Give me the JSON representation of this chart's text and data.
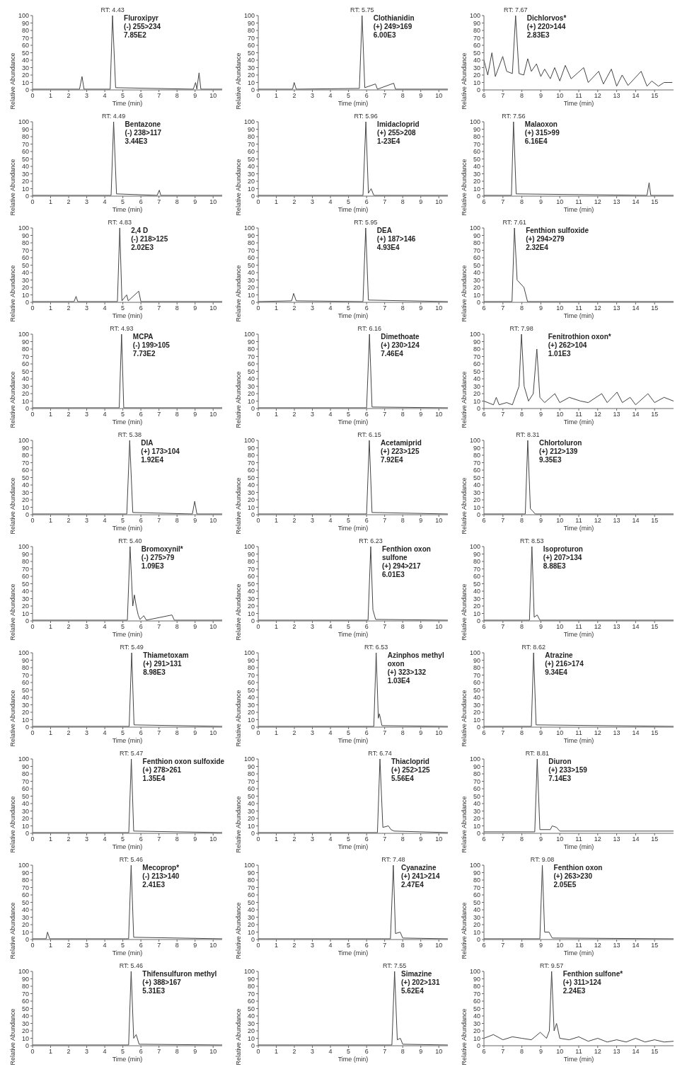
{
  "chart_data": [
    {
      "type": "line",
      "title": "Fluroxipyr",
      "subtitle": "(-) 255>234",
      "annotations": [
        "7.85E2",
        {
          "text": "RT: 4.43",
          "x": 4.43,
          "y": 100
        }
      ],
      "x": [
        0,
        2.6,
        2.74,
        2.85,
        4.3,
        4.43,
        4.6,
        8.9,
        9.03,
        9.1,
        9.22,
        9.32,
        10.5
      ],
      "values": [
        1,
        1,
        18,
        1,
        1,
        100,
        3,
        1,
        10,
        1,
        23,
        1,
        1
      ],
      "color": "#444444",
      "xlim": [
        0,
        10.5
      ],
      "xticks": [
        0,
        1,
        2,
        3,
        4,
        5,
        6,
        7,
        8,
        9,
        10
      ],
      "ylim": [
        0,
        100
      ],
      "yticks": [
        0,
        10,
        20,
        30,
        40,
        50,
        60,
        70,
        80,
        90,
        100
      ],
      "xlabel": "Time (min)",
      "ylabel": "Relative Abundance"
    },
    {
      "type": "line",
      "title": "Clothianidin",
      "subtitle": "(+) 249>169",
      "annotations": [
        "6.00E3",
        {
          "text": "RT: 5.75",
          "x": 5.75,
          "y": 100
        }
      ],
      "x": [
        0,
        1.9,
        1.99,
        2.1,
        5.6,
        5.75,
        5.9,
        6.49,
        6.6,
        7.5,
        7.6,
        10.5
      ],
      "values": [
        1,
        1,
        10,
        1,
        2,
        100,
        3,
        8,
        1,
        9,
        1,
        1
      ],
      "color": "#444444",
      "xlim": [
        0,
        10.5
      ],
      "xticks": [
        0,
        1,
        2,
        3,
        4,
        5,
        6,
        7,
        8,
        9,
        10
      ],
      "ylim": [
        0,
        100
      ],
      "yticks": [
        0,
        10,
        20,
        30,
        40,
        50,
        60,
        70,
        80,
        90,
        100
      ],
      "xlabel": "Time (min)",
      "ylabel": "Relative Abundance"
    },
    {
      "type": "line",
      "title": "Dichlorvos*",
      "subtitle": "(+) 220>144",
      "annotations": [
        "2.83E3",
        {
          "text": "RT: 7.67",
          "x": 7.67,
          "y": 100
        }
      ],
      "x": [
        6,
        6.2,
        6.42,
        6.6,
        6.99,
        7.2,
        7.5,
        7.67,
        7.85,
        8.1,
        8.31,
        8.5,
        8.77,
        9.0,
        9.2,
        9.5,
        9.73,
        10.0,
        10.29,
        10.6,
        11.26,
        11.5,
        12.05,
        12.3,
        12.72,
        13.0,
        13.29,
        13.6,
        14.29,
        14.6,
        14.85,
        15.2,
        15.5,
        15.92
      ],
      "values": [
        40,
        20,
        50,
        18,
        45,
        25,
        22,
        100,
        22,
        20,
        42,
        25,
        35,
        18,
        28,
        15,
        30,
        12,
        33,
        15,
        30,
        10,
        25,
        8,
        28,
        5,
        20,
        6,
        25,
        5,
        12,
        5,
        10,
        10
      ],
      "color": "#444444",
      "xlim": [
        6,
        16
      ],
      "xticks": [
        6,
        7,
        8,
        9,
        10,
        11,
        12,
        13,
        14,
        15
      ],
      "ylim": [
        0,
        100
      ],
      "yticks": [
        0,
        10,
        20,
        30,
        40,
        50,
        60,
        70,
        80,
        90,
        100
      ],
      "xlabel": "Time (min)",
      "ylabel": "Relative Abundance"
    },
    {
      "type": "line",
      "title": "Bentazone",
      "subtitle": "(-) 238>117",
      "annotations": [
        "3.44E3",
        {
          "text": "RT: 4.49",
          "x": 4.49,
          "y": 100
        }
      ],
      "x": [
        0,
        4.35,
        4.49,
        4.65,
        6.9,
        7.02,
        7.1,
        10.5
      ],
      "values": [
        1,
        1,
        100,
        3,
        1,
        8,
        1,
        1
      ],
      "color": "#444444",
      "xlim": [
        0,
        10.5
      ],
      "xticks": [
        0,
        1,
        2,
        3,
        4,
        5,
        6,
        7,
        8,
        9,
        10
      ],
      "ylim": [
        0,
        100
      ],
      "yticks": [
        0,
        10,
        20,
        30,
        40,
        50,
        60,
        70,
        80,
        90,
        100
      ],
      "xlabel": "Time (min)",
      "ylabel": "Relative Abundance"
    },
    {
      "type": "line",
      "title": "Imidacloprid",
      "subtitle": "(+) 255>208",
      "annotations": [
        "1-23E4",
        {
          "text": "RT: 5.96",
          "x": 5.96,
          "y": 100
        }
      ],
      "x": [
        0,
        5.8,
        5.96,
        6.1,
        6.25,
        6.4,
        10.5
      ],
      "values": [
        1,
        1,
        100,
        4,
        10,
        1,
        1
      ],
      "color": "#444444",
      "xlim": [
        0,
        10.5
      ],
      "xticks": [
        0,
        1,
        2,
        3,
        4,
        5,
        6,
        7,
        8,
        9,
        10
      ],
      "ylim": [
        0,
        100
      ],
      "yticks": [
        0,
        10,
        20,
        30,
        40,
        50,
        60,
        70,
        80,
        90,
        100
      ],
      "xlabel": "Time (min)",
      "ylabel": "Relative Abundance"
    },
    {
      "type": "line",
      "title": "Malaoxon",
      "subtitle": "(+) 315>99",
      "annotations": [
        "6.16E4",
        {
          "text": "RT: 7.56",
          "x": 7.56,
          "y": 100
        }
      ],
      "x": [
        6,
        7.45,
        7.56,
        7.7,
        14.6,
        14.71,
        14.8,
        16
      ],
      "values": [
        1,
        1,
        100,
        3,
        1,
        18,
        1,
        1
      ],
      "color": "#444444",
      "xlim": [
        6,
        16
      ],
      "xticks": [
        6,
        7,
        8,
        9,
        10,
        11,
        12,
        13,
        14,
        15
      ],
      "ylim": [
        0,
        100
      ],
      "yticks": [
        0,
        10,
        20,
        30,
        40,
        50,
        60,
        70,
        80,
        90,
        100
      ],
      "xlabel": "Time (min)",
      "ylabel": "Relative Abundance"
    },
    {
      "type": "line",
      "title": "2,4 D",
      "subtitle": "(-) 218>125",
      "annotations": [
        "2.02E3",
        {
          "text": "RT: 4.83",
          "x": 4.83,
          "y": 100
        }
      ],
      "x": [
        0,
        2.3,
        2.41,
        2.5,
        4.7,
        4.83,
        4.95,
        5.21,
        5.3,
        5.88,
        6.0,
        10.5
      ],
      "values": [
        1,
        1,
        8,
        1,
        1,
        100,
        2,
        10,
        2,
        15,
        1,
        1
      ],
      "color": "#444444",
      "xlim": [
        0,
        10.5
      ],
      "xticks": [
        0,
        1,
        2,
        3,
        4,
        5,
        6,
        7,
        8,
        9,
        10
      ],
      "ylim": [
        0,
        100
      ],
      "yticks": [
        0,
        10,
        20,
        30,
        40,
        50,
        60,
        70,
        80,
        90,
        100
      ],
      "xlabel": "Time (min)",
      "ylabel": "Relative Abundance"
    },
    {
      "type": "line",
      "title": "DEA",
      "subtitle": "(+) 187>146",
      "annotations": [
        "4.93E4",
        {
          "text": "RT: 5.95",
          "x": 5.95,
          "y": 100
        }
      ],
      "x": [
        0,
        1.85,
        1.96,
        2.1,
        5.8,
        5.95,
        6.1,
        10.5
      ],
      "values": [
        1,
        2,
        12,
        2,
        1,
        100,
        3,
        1
      ],
      "color": "#444444",
      "xlim": [
        0,
        10.5
      ],
      "xticks": [
        0,
        1,
        2,
        3,
        4,
        5,
        6,
        7,
        8,
        9,
        10
      ],
      "ylim": [
        0,
        100
      ],
      "yticks": [
        0,
        10,
        20,
        30,
        40,
        50,
        60,
        70,
        80,
        90,
        100
      ],
      "xlabel": "Time (min)",
      "ylabel": "Relative Abundance"
    },
    {
      "type": "line",
      "title": "Fenthion sulfoxide",
      "subtitle": "(+) 294>279",
      "annotations": [
        "2.32E4",
        {
          "text": "RT: 7.61",
          "x": 7.61,
          "y": 100
        }
      ],
      "x": [
        6,
        7.48,
        7.61,
        7.75,
        8.11,
        8.3,
        16
      ],
      "values": [
        1,
        1,
        100,
        30,
        20,
        1,
        1
      ],
      "color": "#444444",
      "xlim": [
        6,
        16
      ],
      "xticks": [
        6,
        7,
        8,
        9,
        10,
        11,
        12,
        13,
        14,
        15
      ],
      "ylim": [
        0,
        100
      ],
      "yticks": [
        0,
        10,
        20,
        30,
        40,
        50,
        60,
        70,
        80,
        90,
        100
      ],
      "xlabel": "Time (min)",
      "ylabel": "Relative Abundance"
    },
    {
      "type": "line",
      "title": "MCPA",
      "subtitle": "(-) 199>105",
      "annotations": [
        "7.73E2",
        {
          "text": "RT: 4.93",
          "x": 4.93,
          "y": 100
        }
      ],
      "x": [
        0,
        4.8,
        4.93,
        5.05,
        10.5
      ],
      "values": [
        1,
        1,
        100,
        1,
        1
      ],
      "color": "#444444",
      "xlim": [
        0,
        10.5
      ],
      "xticks": [
        0,
        1,
        2,
        3,
        4,
        5,
        6,
        7,
        8,
        9,
        10
      ],
      "ylim": [
        0,
        100
      ],
      "yticks": [
        0,
        10,
        20,
        30,
        40,
        50,
        60,
        70,
        80,
        90,
        100
      ],
      "xlabel": "Time (min)",
      "ylabel": "Relative Abundance"
    },
    {
      "type": "line",
      "title": "Dimethoate",
      "subtitle": "(+) 230>124",
      "annotations": [
        "7.46E4",
        {
          "text": "RT: 6.16",
          "x": 6.16,
          "y": 100
        }
      ],
      "x": [
        0,
        6.0,
        6.16,
        6.3,
        10.5
      ],
      "values": [
        1,
        1,
        100,
        2,
        1
      ],
      "color": "#444444",
      "xlim": [
        0,
        10.5
      ],
      "xticks": [
        0,
        1,
        2,
        3,
        4,
        5,
        6,
        7,
        8,
        9,
        10
      ],
      "ylim": [
        0,
        100
      ],
      "yticks": [
        0,
        10,
        20,
        30,
        40,
        50,
        60,
        70,
        80,
        90,
        100
      ],
      "xlabel": "Time (min)",
      "ylabel": "Relative Abundance"
    },
    {
      "type": "line",
      "title": "Fenitrothion oxon*",
      "subtitle": "(+) 262>104",
      "annotations": [
        "1.01E3",
        {
          "text": "RT: 7.98",
          "x": 7.98,
          "y": 100
        }
      ],
      "x": [
        6,
        6.5,
        6.65,
        6.8,
        7.2,
        7.5,
        7.85,
        7.98,
        8.12,
        8.35,
        8.6,
        8.79,
        8.95,
        9.2,
        9.74,
        10.0,
        10.5,
        11.1,
        11.5,
        12.21,
        12.5,
        13.02,
        13.3,
        13.71,
        14.0,
        14.65,
        15.0,
        15.5,
        16
      ],
      "values": [
        10,
        5,
        15,
        5,
        8,
        5,
        30,
        100,
        30,
        10,
        20,
        80,
        15,
        8,
        20,
        8,
        15,
        10,
        8,
        20,
        8,
        22,
        8,
        15,
        5,
        20,
        8,
        15,
        10
      ],
      "color": "#444444",
      "xlim": [
        6,
        16
      ],
      "xticks": [
        6,
        7,
        8,
        9,
        10,
        11,
        12,
        13,
        14,
        15
      ],
      "ylim": [
        0,
        100
      ],
      "yticks": [
        0,
        10,
        20,
        30,
        40,
        50,
        60,
        70,
        80,
        90,
        100
      ],
      "xlabel": "Time (min)",
      "ylabel": "Relative Abundance"
    },
    {
      "type": "line",
      "title": "DIA",
      "subtitle": "(+) 173>104",
      "annotations": [
        "1.92E4",
        {
          "text": "RT: 5.38",
          "x": 5.38,
          "y": 100
        }
      ],
      "x": [
        0,
        5.22,
        5.38,
        5.55,
        8.85,
        8.98,
        9.1,
        10.5
      ],
      "values": [
        1,
        1,
        100,
        3,
        1,
        18,
        1,
        1
      ],
      "color": "#444444",
      "xlim": [
        0,
        10.5
      ],
      "xticks": [
        0,
        1,
        2,
        3,
        4,
        5,
        6,
        7,
        8,
        9,
        10
      ],
      "ylim": [
        0,
        100
      ],
      "yticks": [
        0,
        10,
        20,
        30,
        40,
        50,
        60,
        70,
        80,
        90,
        100
      ],
      "xlabel": "Time (min)",
      "ylabel": "Relative Abundance"
    },
    {
      "type": "line",
      "title": "Acetamiprid",
      "subtitle": "(+) 223>125",
      "annotations": [
        "7.92E4",
        {
          "text": "RT: 6.15",
          "x": 6.15,
          "y": 100
        }
      ],
      "x": [
        0,
        6.0,
        6.15,
        6.3,
        10.5
      ],
      "values": [
        1,
        1,
        100,
        3,
        1
      ],
      "color": "#444444",
      "xlim": [
        0,
        10.5
      ],
      "xticks": [
        0,
        1,
        2,
        3,
        4,
        5,
        6,
        7,
        8,
        9,
        10
      ],
      "ylim": [
        0,
        100
      ],
      "yticks": [
        0,
        10,
        20,
        30,
        40,
        50,
        60,
        70,
        80,
        90,
        100
      ],
      "xlabel": "Time (min)",
      "ylabel": "Relative Abundance"
    },
    {
      "type": "line",
      "title": "Chlortoluron",
      "subtitle": "(+) 212>139",
      "annotations": [
        "9.35E3",
        {
          "text": "RT: 8.31",
          "x": 8.31,
          "y": 100
        }
      ],
      "x": [
        6,
        8.18,
        8.31,
        8.45,
        8.57,
        8.7,
        16
      ],
      "values": [
        1,
        1,
        100,
        8,
        5,
        1,
        1
      ],
      "color": "#444444",
      "xlim": [
        6,
        16
      ],
      "xticks": [
        6,
        7,
        8,
        9,
        10,
        11,
        12,
        13,
        14,
        15
      ],
      "ylim": [
        0,
        100
      ],
      "yticks": [
        0,
        10,
        20,
        30,
        40,
        50,
        60,
        70,
        80,
        90,
        100
      ],
      "xlabel": "Time (min)",
      "ylabel": "Relative Abundance"
    },
    {
      "type": "line",
      "title": "Bromoxynil*",
      "subtitle": "(-) 275>79",
      "annotations": [
        "1.09E3",
        {
          "text": "RT: 5.40",
          "x": 5.4,
          "y": 100
        }
      ],
      "x": [
        0,
        5.25,
        5.4,
        5.55,
        5.64,
        5.74,
        5.85,
        5.95,
        6.16,
        6.3,
        7.72,
        7.85,
        10.5
      ],
      "values": [
        1,
        1,
        100,
        20,
        35,
        20,
        8,
        2,
        7,
        1,
        8,
        1,
        1
      ],
      "color": "#444444",
      "xlim": [
        0,
        10.5
      ],
      "xticks": [
        0,
        1,
        2,
        3,
        4,
        5,
        6,
        7,
        8,
        9,
        10
      ],
      "ylim": [
        0,
        100
      ],
      "yticks": [
        0,
        10,
        20,
        30,
        40,
        50,
        60,
        70,
        80,
        90,
        100
      ],
      "xlabel": "Time (min)",
      "ylabel": "Relative Abundance"
    },
    {
      "type": "line",
      "title": "Fenthion oxon sulfone",
      "subtitle": "(+) 294>217",
      "annotations": [
        "6.01E3",
        {
          "text": "RT: 6.23",
          "x": 6.23,
          "y": 100
        }
      ],
      "x": [
        0,
        6.08,
        6.23,
        6.35,
        6.5,
        10.5
      ],
      "values": [
        1,
        1,
        100,
        15,
        2,
        1
      ],
      "color": "#444444",
      "xlim": [
        0,
        10.5
      ],
      "xticks": [
        0,
        1,
        2,
        3,
        4,
        5,
        6,
        7,
        8,
        9,
        10
      ],
      "ylim": [
        0,
        100
      ],
      "yticks": [
        0,
        10,
        20,
        30,
        40,
        50,
        60,
        70,
        80,
        90,
        100
      ],
      "xlabel": "Time (min)",
      "ylabel": "Relative Abundance"
    },
    {
      "type": "line",
      "title": "Isoproturon",
      "subtitle": "(+) 207>134",
      "annotations": [
        "8.88E3",
        {
          "text": "RT: 8.53",
          "x": 8.53,
          "y": 100
        }
      ],
      "x": [
        6,
        8.4,
        8.53,
        8.65,
        8.81,
        8.95,
        16
      ],
      "values": [
        1,
        1,
        100,
        5,
        8,
        1,
        1
      ],
      "color": "#444444",
      "xlim": [
        6,
        16
      ],
      "xticks": [
        6,
        7,
        8,
        9,
        10,
        11,
        12,
        13,
        14,
        15
      ],
      "ylim": [
        0,
        100
      ],
      "yticks": [
        0,
        10,
        20,
        30,
        40,
        50,
        60,
        70,
        80,
        90,
        100
      ],
      "xlabel": "Time (min)",
      "ylabel": "Relative Abundance"
    },
    {
      "type": "line",
      "title": "Thiametoxam",
      "subtitle": "(+) 291>131",
      "annotations": [
        "8.98E3",
        {
          "text": "RT: 5.49",
          "x": 5.49,
          "y": 100
        }
      ],
      "x": [
        0,
        5.35,
        5.49,
        5.62,
        10.5
      ],
      "values": [
        1,
        1,
        100,
        3,
        1
      ],
      "color": "#444444",
      "xlim": [
        0,
        10.5
      ],
      "xticks": [
        0,
        1,
        2,
        3,
        4,
        5,
        6,
        7,
        8,
        9,
        10
      ],
      "ylim": [
        0,
        100
      ],
      "yticks": [
        0,
        10,
        20,
        30,
        40,
        50,
        60,
        70,
        80,
        90,
        100
      ],
      "xlabel": "Time (min)",
      "ylabel": "Relative Abundance"
    },
    {
      "type": "line",
      "title": "Azinphos methyl oxon",
      "subtitle": "(+) 323>132",
      "annotations": [
        "1.03E4",
        {
          "text": "RT: 6.53",
          "x": 6.53,
          "y": 100
        }
      ],
      "x": [
        0,
        6.4,
        6.53,
        6.65,
        6.71,
        6.85,
        10.5
      ],
      "values": [
        1,
        1,
        100,
        12,
        18,
        2,
        1
      ],
      "color": "#444444",
      "xlim": [
        0,
        10.5
      ],
      "xticks": [
        0,
        1,
        2,
        3,
        4,
        5,
        6,
        7,
        8,
        9,
        10
      ],
      "ylim": [
        0,
        100
      ],
      "yticks": [
        0,
        10,
        20,
        30,
        40,
        50,
        60,
        70,
        80,
        90,
        100
      ],
      "xlabel": "Time (min)",
      "ylabel": "Relative Abundance"
    },
    {
      "type": "line",
      "title": "Atrazine",
      "subtitle": "(+) 216>174",
      "annotations": [
        "9.34E4",
        {
          "text": "RT: 8.62",
          "x": 8.62,
          "y": 100
        }
      ],
      "x": [
        6,
        8.5,
        8.62,
        8.75,
        16
      ],
      "values": [
        1,
        1,
        100,
        3,
        1
      ],
      "color": "#444444",
      "xlim": [
        6,
        16
      ],
      "xticks": [
        6,
        7,
        8,
        9,
        10,
        11,
        12,
        13,
        14,
        15
      ],
      "ylim": [
        0,
        100
      ],
      "yticks": [
        0,
        10,
        20,
        30,
        40,
        50,
        60,
        70,
        80,
        90,
        100
      ],
      "xlabel": "Time (min)",
      "ylabel": "Relative Abundance"
    },
    {
      "type": "line",
      "title": "Fenthion oxon sulfoxide",
      "subtitle": "(+) 278>261",
      "annotations": [
        "1.35E4",
        {
          "text": "RT: 5.47",
          "x": 5.47,
          "y": 100
        }
      ],
      "x": [
        0,
        5.33,
        5.47,
        5.6,
        10.5
      ],
      "values": [
        1,
        1,
        100,
        3,
        1
      ],
      "color": "#444444",
      "xlim": [
        0,
        10.5
      ],
      "xticks": [
        0,
        1,
        2,
        3,
        4,
        5,
        6,
        7,
        8,
        9,
        10
      ],
      "ylim": [
        0,
        100
      ],
      "yticks": [
        0,
        10,
        20,
        30,
        40,
        50,
        60,
        70,
        80,
        90,
        100
      ],
      "xlabel": "Time (min)",
      "ylabel": "Relative Abundance"
    },
    {
      "type": "line",
      "title": "Thiacloprid",
      "subtitle": "(+) 252>125",
      "annotations": [
        "5.56E4",
        {
          "text": "RT: 6.74",
          "x": 6.74,
          "y": 100
        }
      ],
      "x": [
        0,
        6.6,
        6.74,
        6.9,
        7.21,
        7.35,
        7.52,
        10.5
      ],
      "values": [
        1,
        1,
        100,
        8,
        10,
        5,
        3,
        1
      ],
      "color": "#444444",
      "xlim": [
        0,
        10.5
      ],
      "xticks": [
        0,
        1,
        2,
        3,
        4,
        5,
        6,
        7,
        8,
        9,
        10
      ],
      "ylim": [
        0,
        100
      ],
      "yticks": [
        0,
        10,
        20,
        30,
        40,
        50,
        60,
        70,
        80,
        90,
        100
      ],
      "xlabel": "Time (min)",
      "ylabel": "Relative Abundance"
    },
    {
      "type": "line",
      "title": "Diuron",
      "subtitle": "(+) 233>159",
      "annotations": [
        "7.14E3",
        {
          "text": "RT: 8.81",
          "x": 8.81,
          "y": 100
        }
      ],
      "x": [
        6,
        8.68,
        8.81,
        8.95,
        9.5,
        9.6,
        9.83,
        10.0,
        16
      ],
      "values": [
        2,
        2,
        100,
        5,
        5,
        10,
        8,
        3,
        3
      ],
      "color": "#444444",
      "xlim": [
        6,
        16
      ],
      "xticks": [
        6,
        7,
        8,
        9,
        10,
        11,
        12,
        13,
        14,
        15
      ],
      "ylim": [
        0,
        100
      ],
      "yticks": [
        0,
        10,
        20,
        30,
        40,
        50,
        60,
        70,
        80,
        90,
        100
      ],
      "xlabel": "Time (min)",
      "ylabel": "Relative Abundance"
    },
    {
      "type": "line",
      "title": "Mecoprop*",
      "subtitle": "(-) 213>140",
      "annotations": [
        "2.41E3",
        {
          "text": "RT: 5.46",
          "x": 5.46,
          "y": 100
        }
      ],
      "x": [
        0,
        0.75,
        0.83,
        0.95,
        5.32,
        5.46,
        5.6,
        10.5
      ],
      "values": [
        1,
        1,
        10,
        1,
        1,
        100,
        3,
        1
      ],
      "color": "#444444",
      "xlim": [
        0,
        10.5
      ],
      "xticks": [
        0,
        1,
        2,
        3,
        4,
        5,
        6,
        7,
        8,
        9,
        10
      ],
      "ylim": [
        0,
        100
      ],
      "yticks": [
        0,
        10,
        20,
        30,
        40,
        50,
        60,
        70,
        80,
        90,
        100
      ],
      "xlabel": "Time (min)",
      "ylabel": "Relative Abundance"
    },
    {
      "type": "line",
      "title": "Cyanazine",
      "subtitle": "(+) 241>214",
      "annotations": [
        "2.47E4",
        {
          "text": "RT: 7.48",
          "x": 7.48,
          "y": 100
        }
      ],
      "x": [
        0,
        7.32,
        7.48,
        7.6,
        7.86,
        8.0,
        10.5
      ],
      "values": [
        1,
        1,
        100,
        8,
        10,
        2,
        1
      ],
      "color": "#444444",
      "xlim": [
        0,
        10.5
      ],
      "xticks": [
        0,
        1,
        2,
        3,
        4,
        5,
        6,
        7,
        8,
        9,
        10
      ],
      "ylim": [
        0,
        100
      ],
      "yticks": [
        0,
        10,
        20,
        30,
        40,
        50,
        60,
        70,
        80,
        90,
        100
      ],
      "xlabel": "Time (min)",
      "ylabel": "Relative Abundance"
    },
    {
      "type": "line",
      "title": "Fenthion oxon",
      "subtitle": "(+) 263>230",
      "annotations": [
        "2.05E5",
        {
          "text": "RT: 9.08",
          "x": 9.08,
          "y": 100
        }
      ],
      "x": [
        6,
        8.95,
        9.08,
        9.2,
        9.43,
        9.6,
        16
      ],
      "values": [
        1,
        1,
        100,
        10,
        10,
        2,
        1
      ],
      "color": "#444444",
      "xlim": [
        6,
        16
      ],
      "xticks": [
        6,
        7,
        8,
        9,
        10,
        11,
        12,
        13,
        14,
        15
      ],
      "ylim": [
        0,
        100
      ],
      "yticks": [
        0,
        10,
        20,
        30,
        40,
        50,
        60,
        70,
        80,
        90,
        100
      ],
      "xlabel": "Time (min)",
      "ylabel": "Relative Abundance"
    },
    {
      "type": "line",
      "title": "Thifensulfuron methyl",
      "subtitle": "(+) 388>167",
      "annotations": [
        "5.31E3",
        {
          "text": "RT: 5.46",
          "x": 5.46,
          "y": 100
        }
      ],
      "x": [
        0,
        5.32,
        5.46,
        5.6,
        5.74,
        5.9,
        10.5
      ],
      "values": [
        1,
        1,
        100,
        10,
        15,
        2,
        1
      ],
      "color": "#444444",
      "xlim": [
        0,
        10.5
      ],
      "xticks": [
        0,
        1,
        2,
        3,
        4,
        5,
        6,
        7,
        8,
        9,
        10
      ],
      "ylim": [
        0,
        100
      ],
      "yticks": [
        0,
        10,
        20,
        30,
        40,
        50,
        60,
        70,
        80,
        90,
        100
      ],
      "xlabel": "Time (min)",
      "ylabel": "Relative Abundance"
    },
    {
      "type": "line",
      "title": "Simazine",
      "subtitle": "(+) 202>131",
      "annotations": [
        "5.62E4",
        {
          "text": "RT: 7.55",
          "x": 7.55,
          "y": 100
        }
      ],
      "x": [
        0,
        7.4,
        7.55,
        7.7,
        7.87,
        8.0,
        10.5
      ],
      "values": [
        1,
        1,
        100,
        8,
        10,
        2,
        1
      ],
      "color": "#444444",
      "xlim": [
        0,
        10.5
      ],
      "xticks": [
        0,
        1,
        2,
        3,
        4,
        5,
        6,
        7,
        8,
        9,
        10
      ],
      "ylim": [
        0,
        100
      ],
      "yticks": [
        0,
        10,
        20,
        30,
        40,
        50,
        60,
        70,
        80,
        90,
        100
      ],
      "xlabel": "Time (min)",
      "ylabel": "Relative Abundance"
    },
    {
      "type": "line",
      "title": "Fenthion sulfone*",
      "subtitle": "(+) 311>124",
      "annotations": [
        "2.24E3",
        {
          "text": "RT: 9.57",
          "x": 9.57,
          "y": 100
        }
      ],
      "x": [
        6,
        6.5,
        7.0,
        7.5,
        8.0,
        8.5,
        8.97,
        9.3,
        9.45,
        9.57,
        9.7,
        9.83,
        10.0,
        10.5,
        11,
        11.5,
        12,
        12.5,
        13,
        13.5,
        14,
        14.5,
        15,
        15.5,
        16
      ],
      "values": [
        10,
        15,
        8,
        12,
        10,
        8,
        18,
        10,
        20,
        100,
        20,
        30,
        10,
        8,
        12,
        6,
        10,
        5,
        8,
        5,
        10,
        5,
        8,
        5,
        6
      ],
      "color": "#444444",
      "xlim": [
        6,
        16
      ],
      "xticks": [
        6,
        7,
        8,
        9,
        10,
        11,
        12,
        13,
        14,
        15
      ],
      "ylim": [
        0,
        100
      ],
      "yticks": [
        0,
        10,
        20,
        30,
        40,
        50,
        60,
        70,
        80,
        90,
        100
      ],
      "xlabel": "Time (min)",
      "ylabel": "Relative Abundance"
    }
  ]
}
